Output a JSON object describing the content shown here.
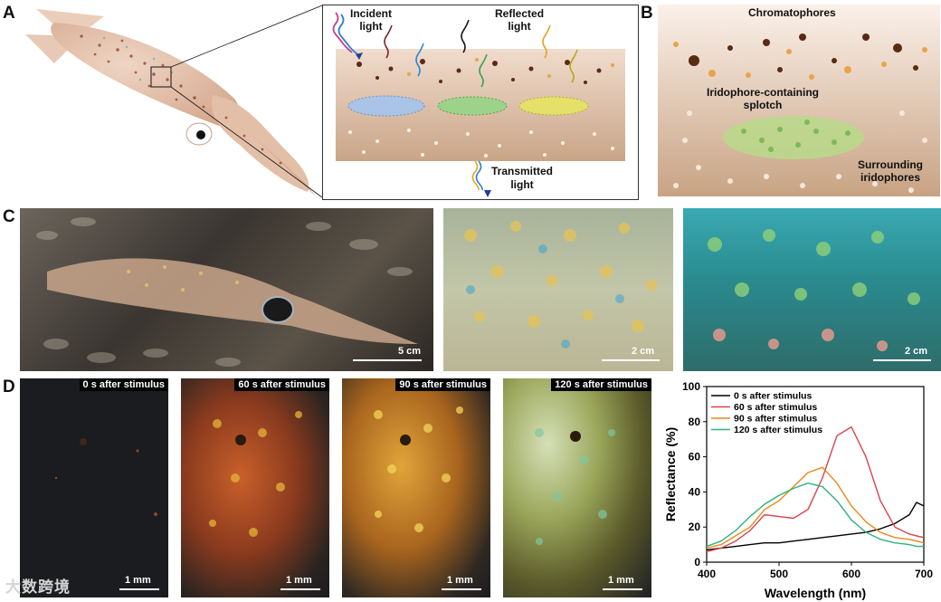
{
  "panels": {
    "a": {
      "label": "A",
      "incident": [
        "Incident",
        "light"
      ],
      "reflected": [
        "Reflected",
        "light"
      ],
      "transmitted": [
        "Transmitted",
        "light"
      ]
    },
    "b": {
      "label": "B",
      "chromatophores": "Chromatophores",
      "splotch": [
        "Iridophore-containing",
        "splotch"
      ],
      "surrounding": [
        "Surrounding",
        "iridophores"
      ]
    },
    "c": {
      "label": "C",
      "scales": [
        "5 cm",
        "2 cm",
        "2 cm"
      ]
    },
    "d": {
      "label": "D",
      "frames": [
        "0 s after stimulus",
        "60 s after stimulus",
        "90 s after stimulus",
        "120 s after stimulus"
      ],
      "scale": "1 mm"
    }
  },
  "watermark": "大数跨境",
  "colors": {
    "series0": "#000000",
    "series60": "#d9434b",
    "series90": "#e8891a",
    "series120": "#2fb27a",
    "skin": "#e8c8b4",
    "dermis": "#c9a587"
  },
  "chart_data": {
    "type": "line",
    "title": "",
    "xlabel": "Wavelength (nm)",
    "ylabel": "Reflectance (%)",
    "xlim": [
      400,
      700
    ],
    "ylim": [
      0,
      100
    ],
    "xticks": [
      400,
      500,
      600,
      700
    ],
    "yticks": [
      0,
      20,
      40,
      60,
      80,
      100
    ],
    "legend_position": "top-left",
    "x": [
      400,
      420,
      440,
      460,
      480,
      500,
      520,
      540,
      560,
      580,
      600,
      620,
      640,
      660,
      680,
      690,
      700
    ],
    "series": [
      {
        "name": "0 s after stimulus",
        "values": [
          7,
          8,
          9,
          10,
          11,
          11,
          12,
          13,
          14,
          15,
          16,
          17,
          19,
          22,
          27,
          34,
          32
        ]
      },
      {
        "name": "60 s after stimulus",
        "values": [
          6,
          8,
          12,
          18,
          27,
          26,
          25,
          30,
          48,
          72,
          77,
          60,
          35,
          20,
          16,
          15,
          14
        ]
      },
      {
        "name": "90 s after stimulus",
        "values": [
          8,
          10,
          15,
          20,
          30,
          35,
          43,
          51,
          54,
          45,
          32,
          23,
          17,
          14,
          13,
          12,
          11
        ]
      },
      {
        "name": "120 s after stimulus",
        "values": [
          9,
          12,
          18,
          26,
          33,
          38,
          42,
          45,
          43,
          35,
          24,
          17,
          13,
          11,
          10,
          9,
          9
        ]
      }
    ]
  }
}
